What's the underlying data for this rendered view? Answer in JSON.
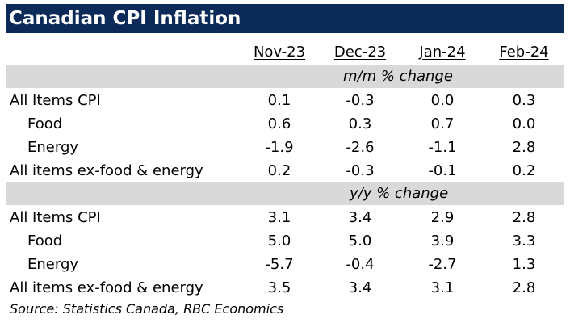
{
  "title": "Canadian CPI Inflation",
  "columns": [
    "Nov-23",
    "Dec-23",
    "Jan-24",
    "Feb-24"
  ],
  "sections": [
    {
      "header": "m/m % change",
      "rows": [
        {
          "label": "All Items CPI",
          "values": [
            "0.1",
            "-0.3",
            "0.0",
            "0.3"
          ]
        },
        {
          "label": "Food",
          "values": [
            "0.6",
            "0.3",
            "0.7",
            "0.0"
          ]
        },
        {
          "label": "Energy",
          "values": [
            "-1.9",
            "-2.6",
            "-1.1",
            "2.8"
          ]
        },
        {
          "label": "All items ex-food & energy",
          "values": [
            "0.2",
            "-0.3",
            "-0.1",
            "0.2"
          ]
        }
      ]
    },
    {
      "header": "y/y % change",
      "rows": [
        {
          "label": "All Items CPI",
          "values": [
            "3.1",
            "3.4",
            "2.9",
            "2.8"
          ]
        },
        {
          "label": "Food",
          "values": [
            "5.0",
            "5.0",
            "3.9",
            "3.3"
          ]
        },
        {
          "label": "Energy",
          "values": [
            "-5.7",
            "-0.4",
            "-2.7",
            "1.3"
          ]
        },
        {
          "label": "All items ex-food & energy",
          "values": [
            "3.5",
            "3.4",
            "3.1",
            "2.8"
          ]
        }
      ]
    }
  ],
  "source": "Source:  Statistics Canada, RBC Economics",
  "colors": {
    "title_bg": "#0b2a58",
    "title_text": "#ffffff",
    "band_bg": "#d9d9d9"
  }
}
